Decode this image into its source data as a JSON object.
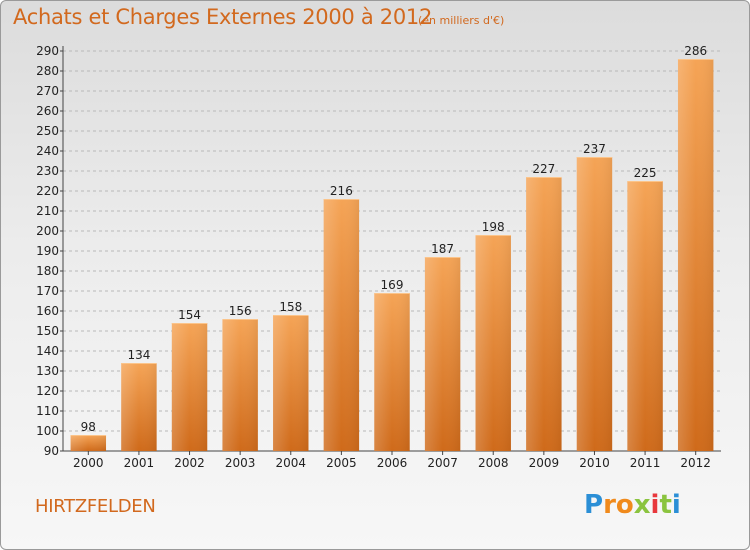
{
  "title": "Achats et Charges Externes 2000 à 2012",
  "subtitle": "(en milliers d'€)",
  "town": "HIRTZFELDEN",
  "brand": {
    "letters": [
      "P",
      "r",
      "o",
      "x",
      "i",
      "t",
      "i"
    ],
    "colors": [
      "#2b8fd6",
      "#f08a1c",
      "#f08a1c",
      "#8bc43f",
      "#e8383d",
      "#8bc43f",
      "#2b8fd6"
    ]
  },
  "chart_data": {
    "type": "bar",
    "categories": [
      "2000",
      "2001",
      "2002",
      "2003",
      "2004",
      "2005",
      "2006",
      "2007",
      "2008",
      "2009",
      "2010",
      "2011",
      "2012"
    ],
    "values": [
      98,
      134,
      154,
      156,
      158,
      216,
      169,
      187,
      198,
      227,
      237,
      225,
      286
    ],
    "data_labels": [
      "98",
      "134",
      "154",
      "156",
      "158",
      "216",
      "169",
      "187",
      "198",
      "227",
      "237",
      "225",
      "286"
    ],
    "ylim": [
      90,
      290
    ],
    "yticks": [
      "90",
      "100",
      "110",
      "120",
      "130",
      "140",
      "150",
      "160",
      "170",
      "180",
      "190",
      "200",
      "210",
      "220",
      "230",
      "240",
      "250",
      "260",
      "270",
      "280",
      "290"
    ],
    "grid": true,
    "bar_color": "#e8822c",
    "title": "Achats et Charges Externes 2000 à 2012",
    "xlabel": "",
    "ylabel": ""
  }
}
